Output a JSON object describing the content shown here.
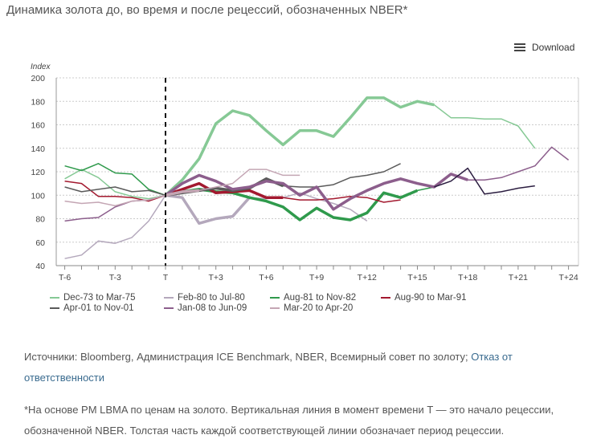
{
  "title": "Динамика золота до, во время и после рецессий, обозначенных NBER*",
  "download_label": "Download",
  "download_icon": "menu-icon",
  "sources_text": "Источники: Bloomberg, Администрация ICE Benchmark, NBER, Всемирный совет по золоту; ",
  "disclaimer_link": "Отказ от ответственности",
  "footnote": "*На основе PM LBMA по ценам на золото. Вертикальная линия в момент времени T — это начало рецессии, обозначенной NBER. Толстая часть каждой соответствующей линии обозначает период рецессии.",
  "chart_data": {
    "type": "line",
    "ylabel": "Index",
    "ylim": [
      40,
      200
    ],
    "yticks": [
      40,
      60,
      80,
      100,
      120,
      140,
      160,
      180,
      200
    ],
    "xlim": [
      -6,
      24
    ],
    "x": [
      -6,
      -5,
      -4,
      -3,
      -2,
      -1,
      0,
      1,
      2,
      3,
      4,
      5,
      6,
      7,
      8,
      9,
      10,
      11,
      12,
      13,
      14,
      15,
      16,
      17,
      18,
      19,
      20,
      21,
      22,
      23,
      24
    ],
    "xticks": [
      {
        "x": -6,
        "label": "T-6"
      },
      {
        "x": -3,
        "label": "T-3"
      },
      {
        "x": 0,
        "label": "T"
      },
      {
        "x": 3,
        "label": "T+3"
      },
      {
        "x": 6,
        "label": "T+6"
      },
      {
        "x": 9,
        "label": "T+9"
      },
      {
        "x": 12,
        "label": "T+12"
      },
      {
        "x": 15,
        "label": "T+15"
      },
      {
        "x": 18,
        "label": "T+18"
      },
      {
        "x": 21,
        "label": "T+21"
      },
      {
        "x": 24,
        "label": "T+24"
      }
    ],
    "grid": "horizontal dotted",
    "vertical_marker": {
      "x": 0,
      "style": "dashed"
    },
    "legend_placement": "bottom",
    "series": [
      {
        "name": "Dec-73 to Mar-75",
        "color": "#86c995",
        "recession_end": 16,
        "values": [
          114,
          122,
          115,
          103,
          99,
          97,
          100,
          113,
          131,
          161,
          172,
          168,
          155,
          143,
          155,
          155,
          150,
          166,
          183,
          183,
          175,
          180,
          177,
          166,
          166,
          165,
          165,
          159,
          140,
          null,
          null
        ]
      },
      {
        "name": "Feb-80 to Jul-80",
        "color": "#b4a8bc",
        "recession_end": 5,
        "values": [
          46,
          49,
          61,
          59,
          64,
          78,
          100,
          98,
          76,
          80,
          82,
          98,
          97,
          98,
          102,
          97,
          93,
          88,
          78,
          null,
          null,
          null,
          null,
          null,
          null,
          null,
          null,
          null,
          null,
          null,
          null
        ]
      },
      {
        "name": "Aug-81 to Nov-82",
        "color": "#2f9a4c",
        "recession_end": 15,
        "values": [
          125,
          121,
          127,
          119,
          118,
          105,
          100,
          103,
          105,
          103,
          102,
          98,
          95,
          90,
          79,
          89,
          81,
          79,
          85,
          102,
          98,
          104,
          107,
          null,
          null,
          null,
          null,
          null,
          null,
          null,
          null
        ]
      },
      {
        "name": "Aug-90 to Mar-91",
        "color": "#a3192f",
        "recession_end": 7,
        "values": [
          112,
          110,
          99,
          99,
          98,
          95,
          100,
          105,
          110,
          102,
          103,
          104,
          98,
          98,
          96,
          96,
          97,
          99,
          98,
          94,
          96,
          null,
          null,
          null,
          null,
          null,
          null,
          null,
          null,
          null,
          null
        ]
      },
      {
        "name": "Apr-01 to Nov-01",
        "color": "#5a5a5a",
        "recession_end": 7,
        "values": [
          107,
          103,
          105,
          107,
          103,
          104,
          100,
          102,
          104,
          106,
          104,
          106,
          114,
          108,
          107,
          107,
          109,
          115,
          117,
          120,
          127,
          null,
          null,
          null,
          null,
          null,
          null,
          null,
          null,
          null,
          null
        ]
      },
      {
        "name": "Jan-08 to Jun-09",
        "color": "#8c5e8c",
        "recession_end": 18,
        "values": [
          78,
          80,
          81,
          90,
          95,
          96,
          100,
          110,
          117,
          112,
          105,
          107,
          112,
          110,
          100,
          107,
          88,
          97,
          104,
          110,
          114,
          110,
          107,
          118,
          113,
          113,
          115,
          120,
          125,
          141,
          130
        ]
      },
      {
        "name": "Mar-20 to Apr-20",
        "color": "#c4a6b4",
        "recession_end": 2,
        "values": [
          95,
          93,
          94,
          91,
          95,
          96,
          100,
          103,
          104,
          107,
          110,
          122,
          122,
          117,
          117,
          null,
          null,
          null,
          null,
          null,
          null,
          null,
          null,
          null,
          null,
          null,
          null,
          null,
          null,
          null,
          null
        ]
      },
      {
        "color": "#2b1d40",
        "recession_end": null,
        "values": [
          null,
          null,
          null,
          null,
          null,
          null,
          null,
          null,
          null,
          null,
          null,
          null,
          null,
          null,
          null,
          null,
          null,
          null,
          null,
          null,
          null,
          null,
          107,
          112,
          123,
          101,
          103,
          106,
          108,
          null,
          null
        ]
      }
    ]
  }
}
